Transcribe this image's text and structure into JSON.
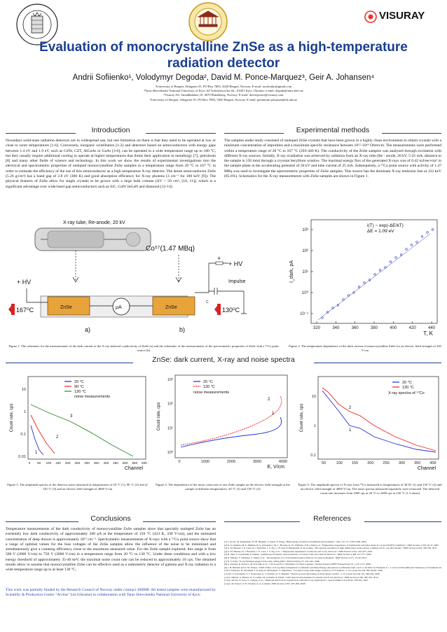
{
  "logos": {
    "left_seal_text": "UNIVERSITAS BERGENSIS",
    "center_seal_text": "",
    "right_brand": "VISURAY"
  },
  "title_line1": "Evaluation of monocrystalline ZnSe as a high-temperature",
  "title_line2": "radiation detector",
  "authors": "Andrii Sofiienko¹, Volodymyr Degoda², David M. Ponce-Marquez³, Geir A. Johansen⁴",
  "affiliations": [
    "¹University of Bergen, Allegaten 55, PO Box 7803, 5020 Bergen, Norway. E-mail: asofienko@gmail.com",
    "²Taras Shevchenko National University of Kyiv, 64 Volodymyrs'ka Str., 01601 Kyiv, Ukraine; e-mail: degoda@univ.kiev.ua",
    "³Visuray AS, Strandbakken 10, 4070 Randaberg, Norway. E-mail: david.ponce@visuray.com",
    "⁴University of Bergen, Allegaten 55, PO Box 7803, 5020 Bergen, Norway. E-mail: geirantom.johansen@ift.uib.no"
  ],
  "sections": {
    "introduction": "Introduction",
    "experimental": "Experimental methods",
    "spectra": "ZnSe: dark current, X-ray and noise spectra",
    "conclusions": "Conclusions",
    "references": "References"
  },
  "intro_text": "Nowadays solid-state radiation detectors are in widespread use, but one limitation on them is that they need to be operated at low or close to room temperatures [1-6]. Conversely, inorganic scintillators [1-2] and detectors based on semiconductors with energy gaps between 1.4 eV and 1.9 eV, such as CdTe, CZT, AlGaAs or GaAs [3-6], can be operated in a wide temperature range up to 100 °C, but they usually require additional cooling to operate at higher temperatures that limits their application in metallurgy [7], petroleum [8] and many other fields of science and technology. In this work we show the results of experimental investigations into the electrical and spectrometric properties of undoped monocrystalline ZnSe samples in a temperature range from 20 °C to 167 °C in order to estimate the efficiency of the use of this semiconductor as a high temperature X-ray detector. The dense semiconductor ZnSe (5.26 g/cm³) has a band gap of 2.8 eV (300 K) and good absorption efficiency for X-ray photons (3 cm⁻¹ for 100 keV [9]). The physical features of ZnSe allow for single crystals to be grown with a large bulk volume (ΔV > 50 cm³, [10, 11]), which is a significant advantage over wide-band gap semiconductors such as SiC, GaN/ InGaN and diamond [12-14].",
  "exp_text": "The samples under study consisted of undoped ZnSe crystals that have been grown in a highly clean environment to obtain crystals with a minimum concentration of impurities and a maximum specific resistance between 10¹²–10¹⁴ Ohm•cm. The measurements were performed within a temperature range of 20 °C to 167 °C (293-440 K). The conductivity of the ZnSe samples was analysed through excitation with different X-ray sources. Initially, X-ray irradiation was achieved by radiation from an X-ray tube (Re - anode, 20 kV, 5-25 mA, distance to the sample is 150 mm) through a cryostat beryllium window. The maximal energy flux of the generated X-rays was of 0.42 mJ/sec•cm² in the sample plane at the accelerating potential of 20 kV and tube current of 25 mA. Subsequently, a ⁵⁷Co point source with activity of 1.47 MBq was used to investigate the spectrometric properties of ZnSe samples. This source has the dominant X-ray emission line at 122 keV (85.6%). Schematics for the X-ray measurements with ZnSe samples are shown in Figure 1.",
  "fig1": {
    "tube_label": "X-ray tube, Re-anode, 20 kV",
    "source_label": "Co⁵⁷(1.47 MBq)",
    "hv_right": "+ HV",
    "hv_left": "+ HV",
    "impulse": "Impulse",
    "r": "R",
    "c": "C",
    "temp_left": "167⁰C",
    "temp_right": "130⁰C",
    "sample": "ZnSe",
    "meter": "μA",
    "label_a": "a)",
    "label_b": "b)",
    "caption": "Figure 1. The schematic for the measurements of the dark current or the X-ray-induced conductivity of ZnSe (a) and the schematic of the measurements of the spectrometric properties of ZnSe with a ⁵⁷Co point source (b)"
  },
  "fig2": {
    "legend1": "i(T) ~ exp(-ΔE/kT)",
    "legend2": "ΔE = 1.09 eV",
    "ylabel": "I_dark, pA",
    "xlabel": "T, K",
    "yticks": [
      "10³",
      "10²",
      "10¹",
      "10⁰",
      "10⁻¹"
    ],
    "xticks": [
      "320",
      "340",
      "360",
      "380",
      "400",
      "420",
      "440"
    ],
    "caption": "Figure 2. The temperature dependence of the dark current of monocrystalline ZnSe for an electric field strength of 330 V/cm"
  },
  "fig3": {
    "legend": [
      "20 °C",
      "90 °C",
      "130 °C",
      "noise measurements"
    ],
    "ylabel": "Count rate, cps",
    "xlabel": "Channel",
    "yticks": [
      "10",
      "1",
      "0.1",
      "0.01"
    ],
    "xticks": [
      "0",
      "50",
      "100",
      "150",
      "200",
      "250",
      "300",
      "350",
      "400",
      "450",
      "500",
      "550",
      "600"
    ],
    "curve_labels": [
      "1",
      "2",
      "3"
    ],
    "caption": "Figure 3. The amplitude spectra of the detector noise measured at temperatures of 20 °C (1), 90 °C (2) and of 130 °C (3) and an electric field strength of 4000 V/cm"
  },
  "fig4": {
    "legend": [
      "20 °C",
      "130 °C",
      "noise measurements"
    ],
    "ylabel": "Count rate, cps",
    "xlabel": "E, V/cm",
    "yticks": [
      "10³",
      "10²",
      "10¹",
      "10⁰"
    ],
    "xticks": [
      "0",
      "1000",
      "2000",
      "3000",
      "4000"
    ],
    "curve_labels": [
      "1",
      "2"
    ],
    "caption": "Figure 4. The dependence of the noise count rate of one ZnSe sample on the electric field strength in the sample at different temperatures: 20 °C (1) and 130 °C (2)"
  },
  "fig5": {
    "legend": [
      "20 °C",
      "130 °C",
      "X-ray spectra of ⁵⁷Co"
    ],
    "ylabel": "Count rate, cps",
    "xlabel": "Channel",
    "yticks": [
      "10",
      "1",
      "0.1"
    ],
    "xticks": [
      "50",
      "100",
      "150",
      "200",
      "250",
      "300",
      "350",
      "400"
    ],
    "curve_labels": [
      "1",
      "2"
    ],
    "caption": "Figure 5: The amplitude spectra of X-rays from ⁵⁷Co measured at temperatures of 20 0C (1) and 130 °C (2) and an electric field strength of 4000 V/cm. The noise spectra measured separately were extracted. The detected count rate increases from 1600 cps at 20 °C to 2400 cps at 130 °C (1.5 times)"
  },
  "conclusions_text": "Temperature measurements of the dark conductivity of monocrystalline ZnSe samples show that specially undoped ZnSe has an extremely low dark conductivity of approximately 200 pA at the temperature of 150 °C (423 K, 330 V/cm), and the estimated concentration of deep donors is approximately 10¹⁵ cm⁻³. Spectrometric measurements of X-rays with a ⁵⁷Co point source show that a range of optimal values for the bias voltages of the ZnSe samples allow the influence of the noise to be minimised and simultaneously give a counting efficiency close to the maximum measured value. For the ZnSe sample explored, this range is from 500 V (2000 V/cm) to 750 V (3000 V/cm) in a temperature range from 20 °C to 130 °C. Under these conditions and with a low energy threshold of approximately 35-40 keV, the maximal noise count rate can be reduced to approximately 10 cps. The obtained results allow to assume that monocrystalline ZnSe can be effective used as a radiometric detector of gamma and X-ray radiation in a wide temperature range up to at least 130 °C.",
  "funding_text": "This work was partially funded by the Research Council of Norway under contract 200888. All tested samples were manufactured by Scientific & Production Centre \"Arvina\" Ltd (Ukraine) in collaboration with Taras Shevchenko National University of Kyiv.",
  "references": [
    "[1]  J. Glodo, M. Klugerman, W. M. Higgins, T. Gupta, P. Wong, \"High-energy resolution scintillation spectrometers\", Nucl. Sci. 51, 2395-2399, 2004.",
    "[2]  K. O. Imatkin, M. E. Mihicki, B. S. Alexandrov, M. C. Browne, R. W. Williams, P. B. Littlewood, \"Temperature dependence of nonlinearity and pulse shape in a doped NaI(Tl) scintillator\", NIM Section A 578, 26-37, 2007.",
    "[3]  A. M. Barnett, J. E. Lees, D. J. Bassford, J. S. Ng, C. H. Tan, N. Babazadeh, R. B. Gomes, \"The spectral resolution of high temperature GaAs photon counting soft X- ray photodiodes\", NIM Section A 654, 336-339, 2011.",
    "[4]  A. M. Barnett, D. J. Bassford, J. E. Lees, J. S. Ng, et al., \"Temperature dependence of AlGaAs soft X-ray detectors\", NIM Section A 621, 453-455, 2010.",
    "[5]  R. Ashi, V. Gryshchuk, P. Samuk, \"Gamma spectrometric characterization of various CdTe and CdZnTe detectors\", NIM Section A 428, 127-137, 1999.",
    "[6]  A. Miyake, T. Nishioka, S. Singh, et al., \"Development of a CdTe thermal neutron detector for neutron imaging\", NIM Section A 577, 41-46, 2012.",
    "[7]  R. V. Pohl, \"X-ray thickness gauge for hot strip rolling mills\", Electrical Eng. 67, 441-444, 1948.",
    "[8]  A. Gierlitz, R. Fedorov, M. Korchik, et al., \"Cm X-ray/F/Co Scintillator for Well Logging\", Nuclear Science (IEEE Transactions) 55, 1170-1173, 2008.",
    "[9]  J. H. Hubbell and S. M. Seltzer, \"NIST Tables of X-ray Mass Attenuation Coefficients and Mass Energy-Absorption Coefficients from 1 keV to 20 MeV for Elements Z = 1 to 92 and 48 Additional Substances of Dosimetric Interest\", National Institute of Standards and Technology, Gaithersburg, MD, 1996.",
    "[10]  S. Fujiwara, H. Morishita, T. Kotani, K. Matsumoto, T. Shirakawa, \"Growth of large ZnSe single crystal by CVT method\", J. of Crystal Growth 186, 60-66, 1998.",
    "[11]  Yu. V. Korostelin, V. I. Kozlovsky, A. S. Nasibov, P. V. Shapkin, \"Vapour growth and doping of ZnSe single crystals\", J. of Crystal Growth 197, 449-454, 1999.",
    "[12]  S. Omeltz, A. Barnes, K. S. Gulley, M. Germain, P. Tiddle, \"GaN detector development for particle and X-ray detection\", NIM Section A 583, 385-391, 2012.",
    "[13]  A. De Sio, E. Pace, G. Cinque, et al., \"Diamond detectors for synchrotron radiation X-ray applications\", Spectrochimica Acta B 62, 558-562, 2007.",
    "[14]  A. M. Ivanov, N. B. Strokan, A. A. Lebedev, NIM Section A 597, 203-206, 2008."
  ]
}
